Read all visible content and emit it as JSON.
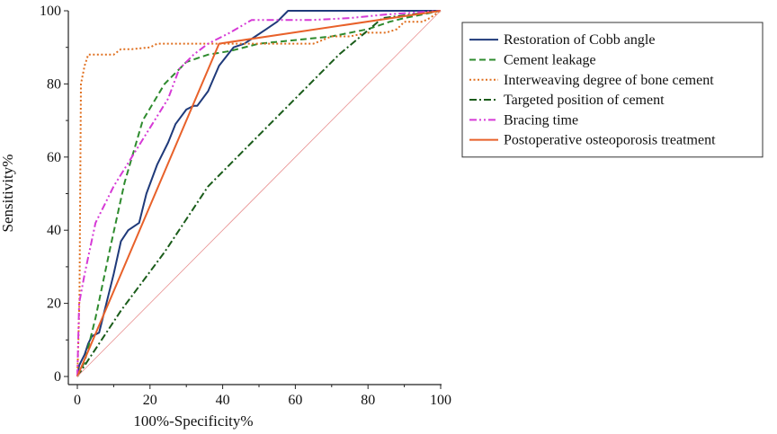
{
  "chart_data": {
    "type": "line",
    "title": "",
    "xlabel": "100%-Specificity%",
    "ylabel": "Sensitivity%",
    "xlim": [
      0,
      100
    ],
    "ylim": [
      0,
      100
    ],
    "x_ticks": [
      "0",
      "20",
      "40",
      "60",
      "80",
      "100"
    ],
    "y_ticks": [
      "0",
      "20",
      "40",
      "60",
      "80",
      "100"
    ],
    "legend_position": "right",
    "series": [
      {
        "name": "Restoration of Cobb angle",
        "color": "#1f3a7a",
        "style": "solid",
        "points": [
          [
            0,
            0
          ],
          [
            0.5,
            3
          ],
          [
            1,
            4
          ],
          [
            2,
            6
          ],
          [
            3,
            9
          ],
          [
            4,
            11
          ],
          [
            6,
            12
          ],
          [
            8,
            20
          ],
          [
            10,
            28
          ],
          [
            12,
            37
          ],
          [
            14,
            40
          ],
          [
            17,
            42
          ],
          [
            19,
            50
          ],
          [
            22,
            58
          ],
          [
            25,
            64
          ],
          [
            27,
            69
          ],
          [
            30,
            73
          ],
          [
            32,
            74
          ],
          [
            33,
            74
          ],
          [
            36,
            78
          ],
          [
            39,
            85
          ],
          [
            43,
            90
          ],
          [
            46,
            91
          ],
          [
            49,
            93
          ],
          [
            52,
            95
          ],
          [
            55,
            97
          ],
          [
            58,
            100
          ],
          [
            65,
            100
          ],
          [
            80,
            100
          ],
          [
            100,
            100
          ]
        ]
      },
      {
        "name": "Cement leakage",
        "color": "#2e8b2e",
        "style": "dashed",
        "points": [
          [
            0,
            0
          ],
          [
            2,
            4
          ],
          [
            5,
            16
          ],
          [
            9,
            35
          ],
          [
            13,
            53
          ],
          [
            18,
            70
          ],
          [
            24,
            80
          ],
          [
            30,
            86
          ],
          [
            36,
            88
          ],
          [
            42,
            89
          ],
          [
            50,
            91
          ],
          [
            60,
            92
          ],
          [
            70,
            93
          ],
          [
            80,
            95
          ],
          [
            86,
            97
          ],
          [
            90,
            98
          ],
          [
            95,
            99
          ],
          [
            100,
            100
          ]
        ]
      },
      {
        "name": "Interweaving degree of bone cement",
        "color": "#e07020",
        "style": "dotted",
        "points": [
          [
            0,
            0
          ],
          [
            0.3,
            10
          ],
          [
            0.6,
            22
          ],
          [
            1,
            80
          ],
          [
            2,
            85
          ],
          [
            3,
            88
          ],
          [
            5,
            88
          ],
          [
            8,
            88
          ],
          [
            10,
            88
          ],
          [
            12,
            89.5
          ],
          [
            15,
            89.5
          ],
          [
            20,
            90
          ],
          [
            22,
            91
          ],
          [
            30,
            91
          ],
          [
            35,
            91
          ],
          [
            45,
            91
          ],
          [
            55,
            91
          ],
          [
            63,
            91
          ],
          [
            65,
            91
          ],
          [
            70,
            93
          ],
          [
            75,
            93
          ],
          [
            80,
            94
          ],
          [
            85,
            94
          ],
          [
            88,
            95
          ],
          [
            90,
            97
          ],
          [
            95,
            97
          ],
          [
            97,
            98
          ],
          [
            100,
            100
          ]
        ]
      },
      {
        "name": "Targeted position of cement",
        "color": "#1a5c1a",
        "style": "dashdot",
        "points": [
          [
            0,
            0
          ],
          [
            12,
            18
          ],
          [
            24,
            34
          ],
          [
            36,
            52
          ],
          [
            48,
            64
          ],
          [
            60,
            76
          ],
          [
            72,
            88
          ],
          [
            84,
            98
          ],
          [
            100,
            100
          ]
        ]
      },
      {
        "name": "Bracing time",
        "color": "#d63ad6",
        "style": "dashdotdot",
        "points": [
          [
            0,
            0
          ],
          [
            0.5,
            20
          ],
          [
            2,
            28
          ],
          [
            5,
            42
          ],
          [
            10,
            52
          ],
          [
            15,
            60
          ],
          [
            20,
            68
          ],
          [
            25,
            76
          ],
          [
            28,
            84
          ],
          [
            32,
            88
          ],
          [
            36,
            91
          ],
          [
            42,
            94
          ],
          [
            48,
            97.5
          ],
          [
            55,
            97.5
          ],
          [
            65,
            97.5
          ],
          [
            75,
            98
          ],
          [
            85,
            99
          ],
          [
            100,
            100
          ]
        ]
      },
      {
        "name": "Postoperative osteoporosis treatment",
        "color": "#e8612a",
        "style": "solid",
        "points": [
          [
            0,
            0
          ],
          [
            39,
            91
          ],
          [
            100,
            100
          ]
        ]
      },
      {
        "name": "",
        "color": "#e89090",
        "style": "thin",
        "points": [
          [
            0,
            0
          ],
          [
            100,
            100
          ]
        ]
      }
    ]
  }
}
